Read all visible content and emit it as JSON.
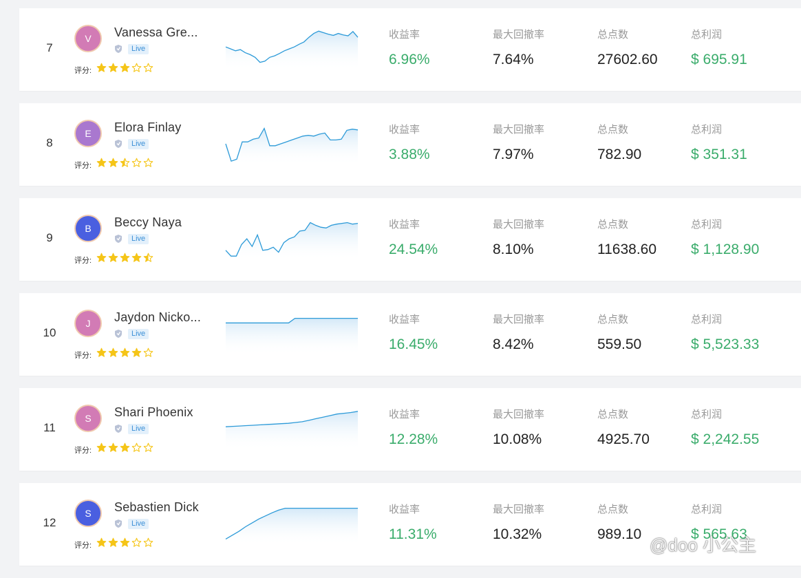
{
  "labels": {
    "return_rate": "收益率",
    "max_drawdown": "最大回撤率",
    "total_points": "总点数",
    "total_profit": "总利润",
    "rating": "评分:",
    "live_badge": "Live"
  },
  "colors": {
    "accent_green": "#3aac6b",
    "star": "#f5c518",
    "sparkline": "#2c9ad8",
    "live_badge_text": "#3b8fd6"
  },
  "icons": {
    "account": "shield-icon",
    "star": "star-icon"
  },
  "watermark": "@doo 小公主",
  "traders": [
    {
      "rank": "7",
      "initial": "V",
      "avatar_color": "#d27bb5",
      "name": "Vanessa Gre...",
      "rating": 3,
      "return_rate": "6.96%",
      "max_drawdown": "7.64%",
      "total_points": "27602.60",
      "total_profit": "$ 695.91",
      "sparkline": [
        0.55,
        0.5,
        0.45,
        0.48,
        0.4,
        0.35,
        0.28,
        0.15,
        0.18,
        0.28,
        0.32,
        0.38,
        0.45,
        0.5,
        0.55,
        0.62,
        0.68,
        0.8,
        0.9,
        0.96,
        0.92,
        0.88,
        0.85,
        0.9,
        0.86,
        0.84,
        0.95,
        0.8
      ]
    },
    {
      "rank": "8",
      "initial": "E",
      "avatar_color": "#a978cf",
      "name": "Elora Finlay",
      "rating": 2.5,
      "return_rate": "3.88%",
      "max_drawdown": "7.97%",
      "total_points": "782.90",
      "total_profit": "$ 351.31",
      "sparkline": [
        0.5,
        0.05,
        0.1,
        0.55,
        0.55,
        0.62,
        0.65,
        0.9,
        0.45,
        0.45,
        0.5,
        0.55,
        0.6,
        0.65,
        0.7,
        0.72,
        0.7,
        0.75,
        0.78,
        0.6,
        0.6,
        0.62,
        0.85,
        0.88,
        0.86
      ]
    },
    {
      "rank": "9",
      "initial": "B",
      "avatar_color": "#4a5fe0",
      "name": "Beccy Naya",
      "rating": 4.5,
      "return_rate": "24.54%",
      "max_drawdown": "8.10%",
      "total_points": "11638.60",
      "total_profit": "$ 1,128.90",
      "sparkline": [
        0.2,
        0.05,
        0.05,
        0.35,
        0.5,
        0.3,
        0.6,
        0.2,
        0.22,
        0.28,
        0.15,
        0.4,
        0.5,
        0.55,
        0.7,
        0.72,
        0.92,
        0.85,
        0.8,
        0.78,
        0.85,
        0.88,
        0.9,
        0.92,
        0.88,
        0.9
      ]
    },
    {
      "rank": "10",
      "initial": "J",
      "avatar_color": "#d27bb5",
      "name": "Jaydon Nicko...",
      "rating": 4,
      "return_rate": "16.45%",
      "max_drawdown": "8.42%",
      "total_points": "559.50",
      "total_profit": "$ 5,523.33",
      "sparkline": [
        0.78,
        0.78,
        0.78,
        0.78,
        0.78,
        0.78,
        0.78,
        0.78,
        0.78,
        0.78,
        0.78,
        0.9,
        0.9,
        0.9,
        0.9,
        0.9,
        0.9,
        0.9,
        0.9,
        0.9,
        0.9,
        0.9
      ]
    },
    {
      "rank": "11",
      "initial": "S",
      "avatar_color": "#d27bb5",
      "name": "Shari Phoenix",
      "rating": 3,
      "return_rate": "12.28%",
      "max_drawdown": "10.08%",
      "total_points": "4925.70",
      "total_profit": "$ 2,242.55",
      "sparkline": [
        0.55,
        0.56,
        0.57,
        0.58,
        0.59,
        0.6,
        0.61,
        0.62,
        0.63,
        0.64,
        0.66,
        0.68,
        0.72,
        0.76,
        0.8,
        0.84,
        0.88,
        0.9,
        0.92,
        0.95
      ]
    },
    {
      "rank": "12",
      "initial": "S",
      "avatar_color": "#4a5fe0",
      "name": "Sebastien Dick",
      "rating": 3,
      "return_rate": "11.31%",
      "max_drawdown": "10.32%",
      "total_points": "989.10",
      "total_profit": "$ 565.63",
      "sparkline": [
        0.1,
        0.2,
        0.3,
        0.42,
        0.52,
        0.62,
        0.7,
        0.78,
        0.85,
        0.9,
        0.9,
        0.9,
        0.9,
        0.9,
        0.9,
        0.9,
        0.9,
        0.9,
        0.9,
        0.9,
        0.9
      ]
    }
  ]
}
